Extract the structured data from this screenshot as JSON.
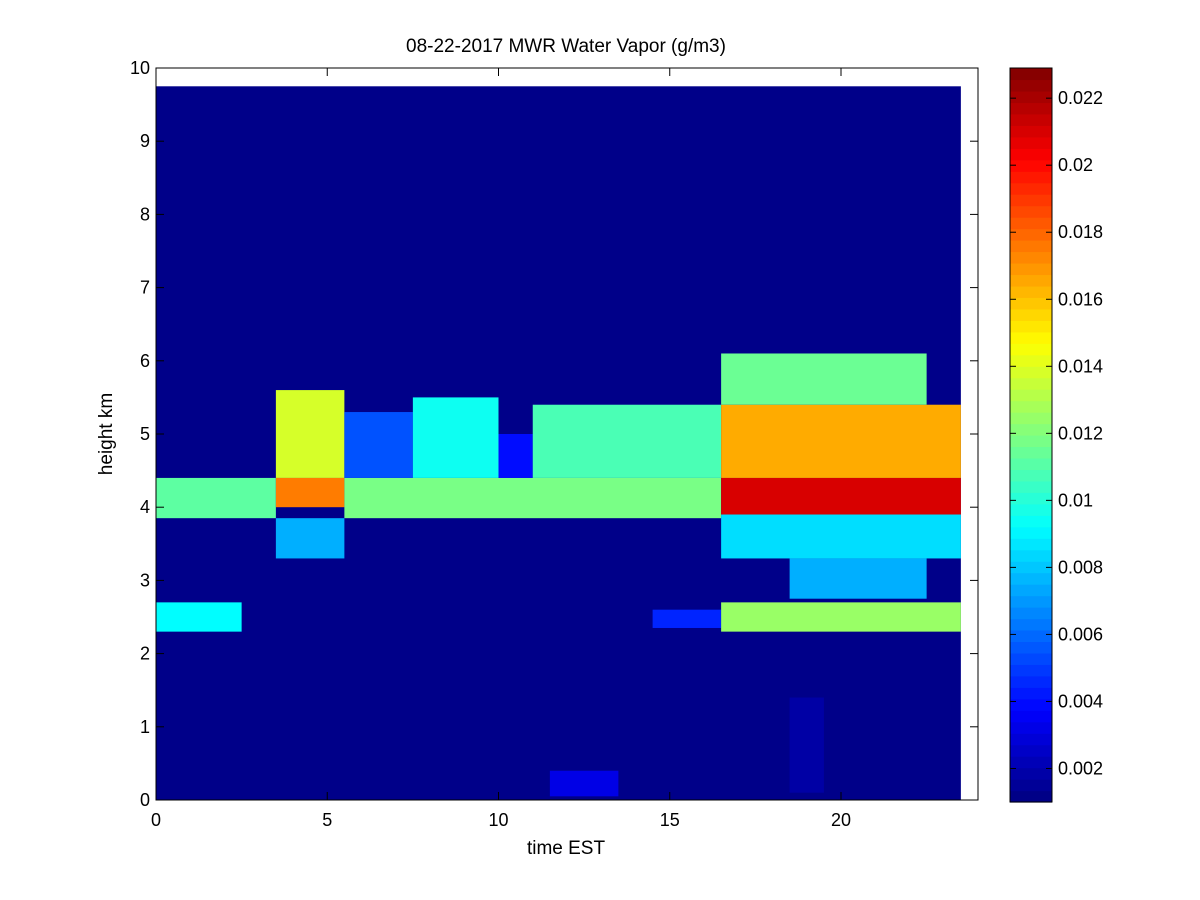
{
  "chart_data": {
    "type": "heatmap",
    "title": "08-22-2017 MWR Water Vapor (g/m3)",
    "xlabel": "time EST",
    "ylabel": "height km",
    "xlim": [
      0,
      24
    ],
    "ylim": [
      0,
      10
    ],
    "xticks": [
      "0",
      "5",
      "10",
      "15",
      "20"
    ],
    "yticks": [
      "0",
      "1",
      "2",
      "3",
      "4",
      "5",
      "6",
      "7",
      "8",
      "9",
      "10"
    ],
    "colormap": "jet",
    "clim": [
      0.001,
      0.0229
    ],
    "colorbar_ticks": [
      "0.002",
      "0.004",
      "0.006",
      "0.008",
      "0.01",
      "0.012",
      "0.014",
      "0.016",
      "0.018",
      "0.02",
      "0.022"
    ],
    "data_extent": {
      "x": [
        0,
        23.5
      ],
      "y": [
        0,
        9.75
      ]
    },
    "background_value": 0.0012,
    "patches": [
      {
        "x": [
          0,
          3.5
        ],
        "y": [
          3.85,
          4.4
        ],
        "v": 0.0112
      },
      {
        "x": [
          3.5,
          5.5
        ],
        "y": [
          4.0,
          4.4
        ],
        "v": 0.0175
      },
      {
        "x": [
          3.5,
          5.5
        ],
        "y": [
          4.4,
          5.6
        ],
        "v": 0.0138
      },
      {
        "x": [
          3.5,
          5.5
        ],
        "y": [
          3.3,
          3.85
        ],
        "v": 0.0075
      },
      {
        "x": [
          5.5,
          16.5
        ],
        "y": [
          3.85,
          4.4
        ],
        "v": 0.0118
      },
      {
        "x": [
          5.5,
          7.5
        ],
        "y": [
          4.4,
          5.3
        ],
        "v": 0.0055
      },
      {
        "x": [
          7.5,
          10
        ],
        "y": [
          4.4,
          5.5
        ],
        "v": 0.0095
      },
      {
        "x": [
          10,
          11
        ],
        "y": [
          4.4,
          5.0
        ],
        "v": 0.004
      },
      {
        "x": [
          11,
          16.5
        ],
        "y": [
          4.4,
          5.4
        ],
        "v": 0.0108
      },
      {
        "x": [
          16.5,
          23.5
        ],
        "y": [
          3.9,
          4.4
        ],
        "v": 0.021
      },
      {
        "x": [
          16.5,
          23.5
        ],
        "y": [
          4.4,
          5.4
        ],
        "v": 0.0165
      },
      {
        "x": [
          16.5,
          22.5
        ],
        "y": [
          5.4,
          6.1
        ],
        "v": 0.0115
      },
      {
        "x": [
          16.5,
          23.5
        ],
        "y": [
          3.3,
          3.9
        ],
        "v": 0.0085
      },
      {
        "x": [
          18.5,
          22.5
        ],
        "y": [
          2.75,
          3.3
        ],
        "v": 0.0075
      },
      {
        "x": [
          0,
          2.5
        ],
        "y": [
          2.3,
          2.7
        ],
        "v": 0.0092
      },
      {
        "x": [
          14.5,
          16.5
        ],
        "y": [
          2.35,
          2.6
        ],
        "v": 0.0045
      },
      {
        "x": [
          16.5,
          23.5
        ],
        "y": [
          2.3,
          2.7
        ],
        "v": 0.0125
      },
      {
        "x": [
          11.5,
          13.5
        ],
        "y": [
          0.05,
          0.4
        ],
        "v": 0.0032
      },
      {
        "x": [
          18.5,
          19.5
        ],
        "y": [
          0.1,
          1.4
        ],
        "v": 0.0018
      }
    ]
  }
}
